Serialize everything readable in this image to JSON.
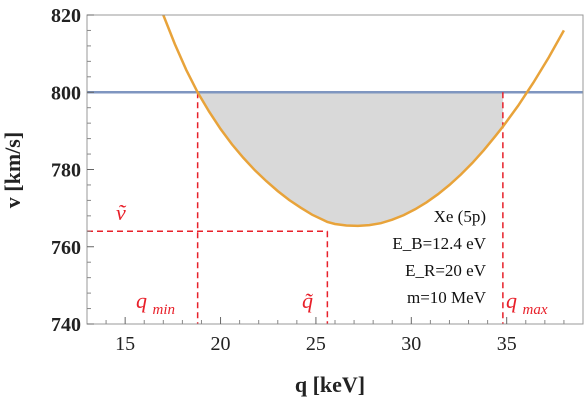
{
  "chart_data": {
    "type": "line",
    "xlabel": "q [keV]",
    "ylabel": "v [km/s]",
    "xlim": [
      13,
      39
    ],
    "ylim": [
      740,
      820
    ],
    "xticks": [
      15,
      20,
      25,
      30,
      35
    ],
    "yticks": [
      740,
      760,
      780,
      800,
      820
    ],
    "grid": false,
    "series": [
      {
        "type": "curve",
        "x": [
          17.0,
          17.6,
          18.2,
          18.8,
          19.4,
          20.0,
          20.6,
          21.2,
          21.8,
          22.4,
          23.0,
          23.6,
          24.2,
          24.8,
          25.4,
          25.6,
          26.0,
          26.6,
          27.2,
          27.8,
          28.4,
          29.0,
          29.6,
          30.2,
          30.8,
          31.4,
          32.0,
          32.6,
          33.2,
          33.8,
          34.4,
          34.8,
          35.6,
          36.4,
          37.2,
          38.0
        ],
        "y": [
          820.0,
          812.5,
          805.8,
          800.0,
          795.0,
          790.5,
          786.5,
          783.0,
          779.8,
          777.0,
          774.4,
          772.1,
          770.1,
          768.3,
          766.9,
          766.4,
          765.9,
          765.5,
          765.4,
          765.6,
          766.1,
          767.0,
          768.2,
          769.7,
          771.5,
          773.6,
          776.0,
          778.7,
          781.7,
          785.0,
          788.6,
          791.1,
          796.5,
          802.5,
          809.0,
          816.0
        ],
        "color": "#e8a33a"
      },
      {
        "type": "horizontal_line",
        "y": 800,
        "color": "#7f96c0"
      }
    ],
    "shaded_region": {
      "between": [
        "curve",
        "v=800"
      ],
      "x_range": [
        18.8,
        34.8
      ],
      "color": "#d9d9d9"
    },
    "reference_lines": {
      "color": "#e8202a",
      "vertical": [
        18.8,
        25.6,
        34.8
      ],
      "horizontal": 764
    },
    "annotations": {
      "v_tilde": "ṽ",
      "q_min": "q",
      "q_min_sub": "min",
      "q_tilde": "q̃",
      "q_max": "q",
      "q_max_sub": "max",
      "params": [
        "Xe (5p)",
        "E_B=12.4 eV",
        "E_R=20 eV",
        "m=10 MeV"
      ]
    }
  }
}
